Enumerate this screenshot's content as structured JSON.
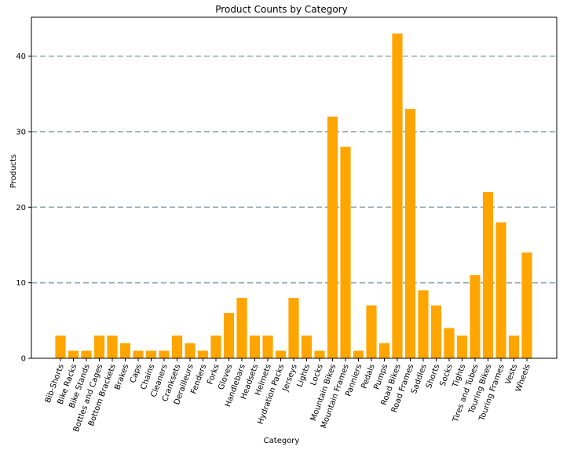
{
  "chart_data": {
    "type": "bar",
    "title": "Product Counts by Category",
    "xlabel": "Category",
    "ylabel": "Products",
    "categories": [
      "Bib-Shorts",
      "Bike Racks",
      "Bike Stands",
      "Bottles and Cages",
      "Bottom Brackets",
      "Brakes",
      "Caps",
      "Chains",
      "Cleaners",
      "Cranksets",
      "Derailleurs",
      "Fenders",
      "Forks",
      "Gloves",
      "Handlebars",
      "Headsets",
      "Helmets",
      "Hydration Packs",
      "Jerseys",
      "Lights",
      "Locks",
      "Mountain Bikes",
      "Mountain Frames",
      "Panniers",
      "Pedals",
      "Pumps",
      "Road Bikes",
      "Road Frames",
      "Saddles",
      "Shorts",
      "Socks",
      "Tights",
      "Tires and Tubes",
      "Touring Bikes",
      "Touring Frames",
      "Vests",
      "Wheels"
    ],
    "values": [
      3,
      1,
      1,
      3,
      3,
      2,
      1,
      1,
      1,
      3,
      2,
      1,
      3,
      6,
      8,
      3,
      3,
      1,
      8,
      3,
      1,
      32,
      28,
      1,
      7,
      2,
      43,
      33,
      9,
      7,
      4,
      3,
      11,
      22,
      18,
      3,
      14
    ],
    "ylim": [
      0,
      45.15
    ],
    "yticks": [
      0,
      10,
      20,
      30,
      40
    ],
    "grid": "horizontal dashed",
    "bar_color": "#FFA500",
    "grid_color": "#8FA9A8"
  }
}
